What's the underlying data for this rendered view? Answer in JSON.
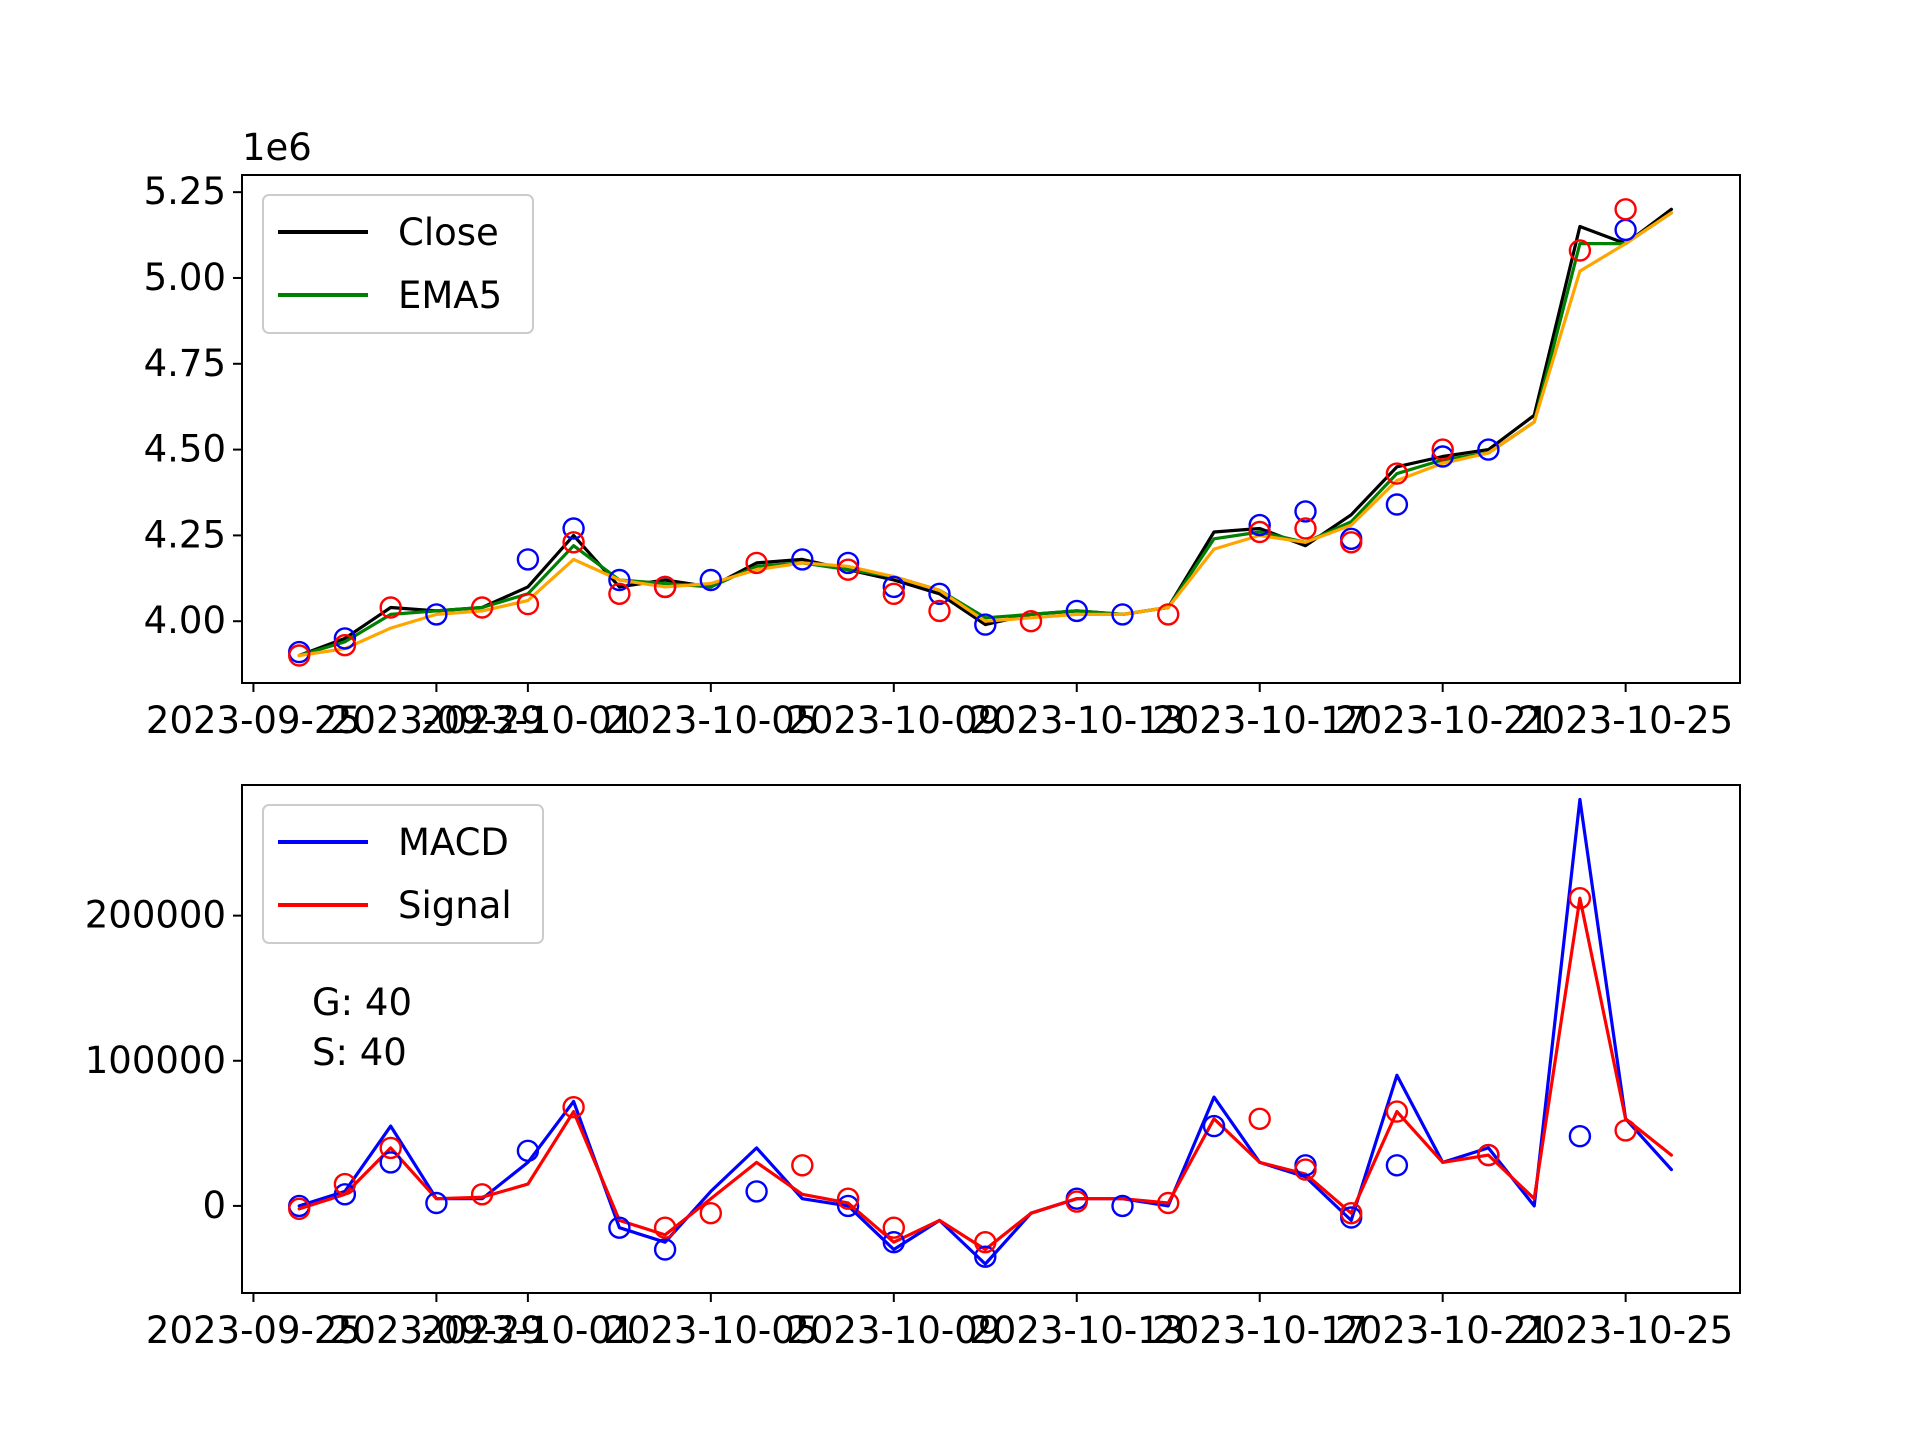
{
  "chart_data": [
    {
      "type": "line",
      "panel": "top",
      "scale_label": "1e6",
      "y_unit": 1000000,
      "ylim": [
        3.82,
        5.3
      ],
      "xlim": [
        "2023-09-24T18:00",
        "2023-10-27T12:00"
      ],
      "yticks": [
        4.0,
        4.25,
        4.5,
        4.75,
        5.0,
        5.25
      ],
      "ytick_labels": [
        "4.00",
        "4.25",
        "4.50",
        "4.75",
        "5.00",
        "5.25"
      ],
      "xticks": [
        "2023-09-25",
        "2023-09-29",
        "2023-10-01",
        "2023-10-05",
        "2023-10-09",
        "2023-10-13",
        "2023-10-17",
        "2023-10-21",
        "2023-10-25"
      ],
      "xtick_labels": [
        "2023-09-25",
        "2023-09-29",
        "2023-10-01",
        "2023-10-05",
        "2023-10-09",
        "2023-10-13",
        "2023-10-17",
        "2023-10-21",
        "2023-10-25"
      ],
      "grid": false,
      "legend_position": "upper-left",
      "legend": [
        {
          "label": "Close",
          "color": "#000000"
        },
        {
          "label": "EMA5",
          "color": "#008000"
        }
      ],
      "series": [
        {
          "name": "Close",
          "color": "#000000",
          "x": [
            "2023-09-26",
            "2023-09-27",
            "2023-09-28",
            "2023-09-29",
            "2023-09-30",
            "2023-10-01",
            "2023-10-02",
            "2023-10-03",
            "2023-10-04",
            "2023-10-05",
            "2023-10-06",
            "2023-10-07",
            "2023-10-08",
            "2023-10-09",
            "2023-10-10",
            "2023-10-11",
            "2023-10-12",
            "2023-10-13",
            "2023-10-14",
            "2023-10-15",
            "2023-10-16",
            "2023-10-17",
            "2023-10-18",
            "2023-10-19",
            "2023-10-20",
            "2023-10-21",
            "2023-10-22",
            "2023-10-23",
            "2023-10-24",
            "2023-10-25",
            "2023-10-26"
          ],
          "y": [
            3.9,
            3.95,
            4.04,
            4.03,
            4.04,
            4.1,
            4.25,
            4.1,
            4.12,
            4.1,
            4.17,
            4.18,
            4.15,
            4.12,
            4.08,
            3.99,
            4.02,
            4.03,
            4.02,
            4.04,
            4.26,
            4.27,
            4.22,
            4.31,
            4.45,
            4.48,
            4.5,
            4.6,
            5.15,
            5.1,
            5.2
          ]
        },
        {
          "name": "EMA5",
          "color": "#008000",
          "x": [
            "2023-09-26",
            "2023-09-27",
            "2023-09-28",
            "2023-09-29",
            "2023-09-30",
            "2023-10-01",
            "2023-10-02",
            "2023-10-03",
            "2023-10-04",
            "2023-10-05",
            "2023-10-06",
            "2023-10-07",
            "2023-10-08",
            "2023-10-09",
            "2023-10-10",
            "2023-10-11",
            "2023-10-12",
            "2023-10-13",
            "2023-10-14",
            "2023-10-15",
            "2023-10-16",
            "2023-10-17",
            "2023-10-18",
            "2023-10-19",
            "2023-10-20",
            "2023-10-21",
            "2023-10-22",
            "2023-10-23",
            "2023-10-24",
            "2023-10-25",
            "2023-10-26"
          ],
          "y": [
            3.9,
            3.94,
            4.02,
            4.03,
            4.04,
            4.08,
            4.22,
            4.12,
            4.11,
            4.1,
            4.16,
            4.17,
            4.15,
            4.13,
            4.09,
            4.01,
            4.02,
            4.03,
            4.02,
            4.04,
            4.24,
            4.26,
            4.23,
            4.29,
            4.43,
            4.47,
            4.49,
            4.58,
            5.1,
            5.1,
            5.19
          ]
        },
        {
          "color": "#ffa500",
          "x": [
            "2023-09-26",
            "2023-09-27",
            "2023-09-28",
            "2023-09-29",
            "2023-09-30",
            "2023-10-01",
            "2023-10-02",
            "2023-10-03",
            "2023-10-04",
            "2023-10-05",
            "2023-10-06",
            "2023-10-07",
            "2023-10-08",
            "2023-10-09",
            "2023-10-10",
            "2023-10-11",
            "2023-10-12",
            "2023-10-13",
            "2023-10-14",
            "2023-10-15",
            "2023-10-16",
            "2023-10-17",
            "2023-10-18",
            "2023-10-19",
            "2023-10-20",
            "2023-10-21",
            "2023-10-22",
            "2023-10-23",
            "2023-10-24",
            "2023-10-25",
            "2023-10-26"
          ],
          "y": [
            3.9,
            3.92,
            3.98,
            4.02,
            4.03,
            4.06,
            4.18,
            4.12,
            4.1,
            4.11,
            4.15,
            4.17,
            4.16,
            4.13,
            4.09,
            4.0,
            4.01,
            4.02,
            4.02,
            4.04,
            4.21,
            4.25,
            4.23,
            4.28,
            4.41,
            4.46,
            4.49,
            4.58,
            5.02,
            5.1,
            5.19
          ]
        }
      ],
      "markers": [
        {
          "color": "#0000ff",
          "x": [
            "2023-09-26",
            "2023-09-27",
            "2023-09-29",
            "2023-10-01",
            "2023-10-02",
            "2023-10-03",
            "2023-10-04",
            "2023-10-05",
            "2023-10-07",
            "2023-10-08",
            "2023-10-09",
            "2023-10-10",
            "2023-10-11",
            "2023-10-13",
            "2023-10-14",
            "2023-10-17",
            "2023-10-18",
            "2023-10-19",
            "2023-10-20",
            "2023-10-21",
            "2023-10-22",
            "2023-10-25"
          ],
          "y": [
            3.91,
            3.95,
            4.02,
            4.18,
            4.27,
            4.12,
            4.1,
            4.12,
            4.18,
            4.17,
            4.1,
            4.08,
            3.99,
            4.03,
            4.02,
            4.28,
            4.32,
            4.24,
            4.34,
            4.48,
            4.5,
            5.14
          ]
        },
        {
          "color": "#ff0000",
          "x": [
            "2023-09-26",
            "2023-09-27",
            "2023-09-28",
            "2023-09-30",
            "2023-10-01",
            "2023-10-02",
            "2023-10-03",
            "2023-10-04",
            "2023-10-06",
            "2023-10-08",
            "2023-10-09",
            "2023-10-10",
            "2023-10-12",
            "2023-10-15",
            "2023-10-17",
            "2023-10-18",
            "2023-10-19",
            "2023-10-20",
            "2023-10-21",
            "2023-10-24",
            "2023-10-25"
          ],
          "y": [
            3.9,
            3.93,
            4.04,
            4.04,
            4.05,
            4.23,
            4.08,
            4.1,
            4.17,
            4.15,
            4.08,
            4.03,
            4.0,
            4.02,
            4.26,
            4.27,
            4.23,
            4.43,
            4.5,
            5.08,
            5.2
          ]
        }
      ]
    },
    {
      "type": "line",
      "panel": "bottom",
      "ylim": [
        -60000,
        290000
      ],
      "xlim": [
        "2023-09-24T18:00",
        "2023-10-27T12:00"
      ],
      "yticks": [
        0,
        100000,
        200000
      ],
      "ytick_labels": [
        "0",
        "100000",
        "200000"
      ],
      "xticks": [
        "2023-09-25",
        "2023-09-29",
        "2023-10-01",
        "2023-10-05",
        "2023-10-09",
        "2023-10-13",
        "2023-10-17",
        "2023-10-21",
        "2023-10-25"
      ],
      "xtick_labels": [
        "2023-09-25",
        "2023-09-29",
        "2023-10-01",
        "2023-10-05",
        "2023-10-09",
        "2023-10-13",
        "2023-10-17",
        "2023-10-21",
        "2023-10-25"
      ],
      "grid": false,
      "legend_position": "upper-left",
      "legend": [
        {
          "label": "MACD",
          "color": "#0000ff"
        },
        {
          "label": "Signal",
          "color": "#ff0000"
        }
      ],
      "annotations": [
        "G: 40",
        "S: 40"
      ],
      "series": [
        {
          "name": "MACD",
          "color": "#0000ff",
          "x": [
            "2023-09-26",
            "2023-09-27",
            "2023-09-28",
            "2023-09-29",
            "2023-09-30",
            "2023-10-01",
            "2023-10-02",
            "2023-10-03",
            "2023-10-04",
            "2023-10-05",
            "2023-10-06",
            "2023-10-07",
            "2023-10-08",
            "2023-10-09",
            "2023-10-10",
            "2023-10-11",
            "2023-10-12",
            "2023-10-13",
            "2023-10-14",
            "2023-10-15",
            "2023-10-16",
            "2023-10-17",
            "2023-10-18",
            "2023-10-19",
            "2023-10-20",
            "2023-10-21",
            "2023-10-22",
            "2023-10-23",
            "2023-10-24",
            "2023-10-25",
            "2023-10-26"
          ],
          "y": [
            0,
            10000,
            55000,
            5000,
            5000,
            30000,
            72000,
            -15000,
            -25000,
            10000,
            40000,
            5000,
            0,
            -30000,
            -10000,
            -40000,
            -5000,
            5000,
            5000,
            0,
            75000,
            30000,
            20000,
            -10000,
            90000,
            30000,
            40000,
            0,
            280000,
            60000,
            25000
          ]
        },
        {
          "name": "Signal",
          "color": "#ff0000",
          "x": [
            "2023-09-26",
            "2023-09-27",
            "2023-09-28",
            "2023-09-29",
            "2023-09-30",
            "2023-10-01",
            "2023-10-02",
            "2023-10-03",
            "2023-10-04",
            "2023-10-05",
            "2023-10-06",
            "2023-10-07",
            "2023-10-08",
            "2023-10-09",
            "2023-10-10",
            "2023-10-11",
            "2023-10-12",
            "2023-10-13",
            "2023-10-14",
            "2023-10-15",
            "2023-10-16",
            "2023-10-17",
            "2023-10-18",
            "2023-10-19",
            "2023-10-20",
            "2023-10-21",
            "2023-10-22",
            "2023-10-23",
            "2023-10-24",
            "2023-10-25",
            "2023-10-26"
          ],
          "y": [
            -2000,
            8000,
            40000,
            5000,
            6000,
            15000,
            65000,
            -10000,
            -20000,
            5000,
            30000,
            8000,
            2000,
            -25000,
            -10000,
            -30000,
            -5000,
            5000,
            5000,
            2000,
            60000,
            30000,
            22000,
            -5000,
            65000,
            30000,
            35000,
            5000,
            212000,
            60000,
            35000
          ]
        }
      ],
      "markers": [
        {
          "color": "#0000ff",
          "x": [
            "2023-09-26",
            "2023-09-27",
            "2023-09-28",
            "2023-09-29",
            "2023-10-01",
            "2023-10-03",
            "2023-10-04",
            "2023-10-06",
            "2023-10-08",
            "2023-10-09",
            "2023-10-11",
            "2023-10-13",
            "2023-10-14",
            "2023-10-16",
            "2023-10-18",
            "2023-10-19",
            "2023-10-20",
            "2023-10-22",
            "2023-10-24"
          ],
          "y": [
            0,
            8000,
            30000,
            2000,
            38000,
            -15000,
            -30000,
            10000,
            0,
            -25000,
            -35000,
            5000,
            0,
            55000,
            28000,
            -8000,
            28000,
            35000,
            48000
          ]
        },
        {
          "color": "#ff0000",
          "x": [
            "2023-09-26",
            "2023-09-27",
            "2023-09-28",
            "2023-09-30",
            "2023-10-02",
            "2023-10-04",
            "2023-10-05",
            "2023-10-07",
            "2023-10-08",
            "2023-10-09",
            "2023-10-11",
            "2023-10-13",
            "2023-10-15",
            "2023-10-17",
            "2023-10-18",
            "2023-10-19",
            "2023-10-20",
            "2023-10-22",
            "2023-10-24",
            "2023-10-25"
          ],
          "y": [
            -2000,
            15000,
            40000,
            8000,
            68000,
            -15000,
            -5000,
            28000,
            5000,
            -15000,
            -25000,
            3000,
            2000,
            60000,
            25000,
            -5000,
            65000,
            35000,
            212000,
            52000
          ]
        }
      ]
    }
  ]
}
